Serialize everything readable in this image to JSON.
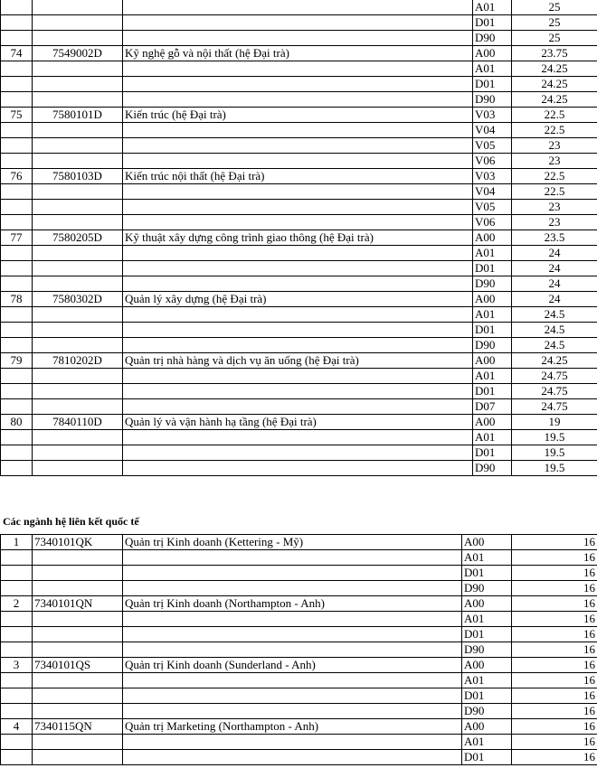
{
  "table1": {
    "groups": [
      {
        "entries": [
          {
            "subject": "A01",
            "score": 25
          },
          {
            "subject": "D01",
            "score": 25
          },
          {
            "subject": "D90",
            "score": 25
          }
        ]
      },
      {
        "no": 74,
        "code": "7549002D",
        "name": "Kỹ nghệ gỗ và nội thất (hệ Đại trà)",
        "entries": [
          {
            "subject": "A00",
            "score": 23.75
          },
          {
            "subject": "A01",
            "score": 24.25
          },
          {
            "subject": "D01",
            "score": 24.25
          },
          {
            "subject": "D90",
            "score": 24.25
          }
        ]
      },
      {
        "no": 75,
        "code": "7580101D",
        "name": "Kiến trúc (hệ Đại trà)",
        "entries": [
          {
            "subject": "V03",
            "score": 22.5
          },
          {
            "subject": "V04",
            "score": 22.5
          },
          {
            "subject": "V05",
            "score": 23
          },
          {
            "subject": "V06",
            "score": 23
          }
        ]
      },
      {
        "no": 76,
        "code": "7580103D",
        "name": "Kiến trúc nội thất (hệ Đại trà)",
        "entries": [
          {
            "subject": "V03",
            "score": 22.5
          },
          {
            "subject": "V04",
            "score": 22.5
          },
          {
            "subject": "V05",
            "score": 23
          },
          {
            "subject": "V06",
            "score": 23
          }
        ]
      },
      {
        "no": 77,
        "code": "7580205D",
        "name": "Kỹ thuật xây dựng công trình giao thông (hệ Đại trà)",
        "entries": [
          {
            "subject": "A00",
            "score": 23.5
          },
          {
            "subject": "A01",
            "score": 24
          },
          {
            "subject": "D01",
            "score": 24
          },
          {
            "subject": "D90",
            "score": 24
          }
        ]
      },
      {
        "no": 78,
        "code": "7580302D",
        "name": "Quản lý xây dựng (hệ Đại trà)",
        "entries": [
          {
            "subject": "A00",
            "score": 24
          },
          {
            "subject": "A01",
            "score": 24.5
          },
          {
            "subject": "D01",
            "score": 24.5
          },
          {
            "subject": "D90",
            "score": 24.5
          }
        ]
      },
      {
        "no": 79,
        "code": "7810202D",
        "name": "Quản trị nhà hàng và dịch vụ ăn uống (hệ Đại trà)",
        "entries": [
          {
            "subject": "A00",
            "score": 24.25
          },
          {
            "subject": "A01",
            "score": 24.75
          },
          {
            "subject": "D01",
            "score": 24.75
          },
          {
            "subject": "D07",
            "score": 24.75
          }
        ]
      },
      {
        "no": 80,
        "code": "7840110D",
        "name": "Quản lý và vận hành hạ tầng (hệ Đại trà)",
        "entries": [
          {
            "subject": "A00",
            "score": 19
          },
          {
            "subject": "A01",
            "score": 19.5
          },
          {
            "subject": "D01",
            "score": 19.5
          },
          {
            "subject": "D90",
            "score": 19.5
          }
        ]
      }
    ]
  },
  "section2": {
    "title": "Các ngành hệ liên kết quốc tế"
  },
  "table2": {
    "groups": [
      {
        "no": 1,
        "code": "7340101QK",
        "name": "Quản trị Kinh doanh (Kettering - Mỹ)",
        "entries": [
          {
            "subject": "A00",
            "score": 16
          },
          {
            "subject": "A01",
            "score": 16
          },
          {
            "subject": "D01",
            "score": 16
          },
          {
            "subject": "D90",
            "score": 16
          }
        ]
      },
      {
        "no": 2,
        "code": "7340101QN",
        "name": "Quản trị Kinh doanh (Northampton - Anh)",
        "entries": [
          {
            "subject": "A00",
            "score": 16
          },
          {
            "subject": "A01",
            "score": 16
          },
          {
            "subject": "D01",
            "score": 16
          },
          {
            "subject": "D90",
            "score": 16
          }
        ]
      },
      {
        "no": 3,
        "code": "7340101QS",
        "name": "Quản trị Kinh doanh (Sunderland - Anh)",
        "entries": [
          {
            "subject": "A00",
            "score": 16
          },
          {
            "subject": "A01",
            "score": 16
          },
          {
            "subject": "D01",
            "score": 16
          },
          {
            "subject": "D90",
            "score": 16
          }
        ]
      },
      {
        "no": 4,
        "code": "7340115QN",
        "name": "Quản trị Marketing (Northampton - Anh)",
        "entries": [
          {
            "subject": "A00",
            "score": 16
          },
          {
            "subject": "A01",
            "score": 16
          },
          {
            "subject": "D01",
            "score": 16
          }
        ]
      }
    ]
  }
}
